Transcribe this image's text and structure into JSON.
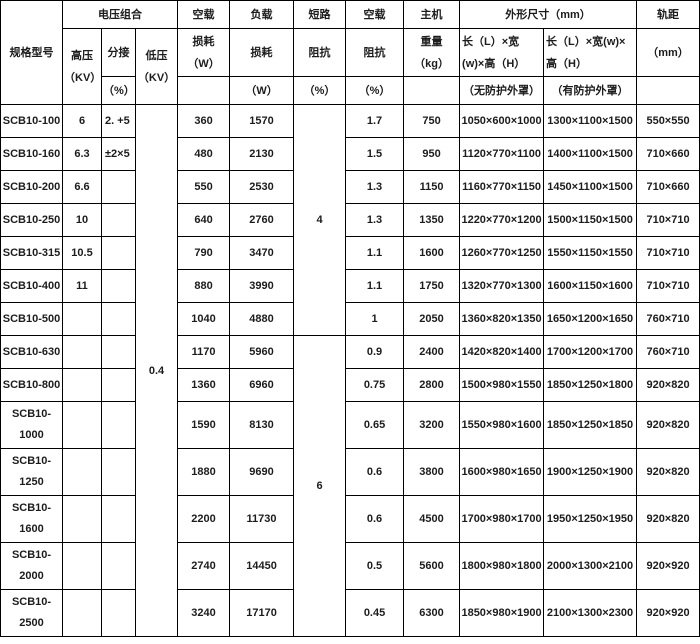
{
  "colors": {
    "border": "#000000",
    "text": "#1c1c1c",
    "background": "#ffffff"
  },
  "header": {
    "spec_model": "规格型号",
    "voltage_combo": "电压组合",
    "hv": "高压\n（KV）",
    "tap": "分接",
    "tap_unit": "（%）",
    "lv": "低压\n（KV）",
    "no_load": "空载",
    "no_load_loss": "损耗\n（W）",
    "load": "负载",
    "load_loss": "损耗",
    "load_loss_unit": "（W）",
    "short_circuit": "短路",
    "sc_impedance": "阻抗",
    "sc_impedance_unit": "（%）",
    "no_load2": "空载",
    "nl_impedance": "阻抗",
    "nl_impedance_unit": "（%）",
    "host": "主机",
    "weight": "重量\n（kg）",
    "dimensions": "外形尺寸（mm）",
    "dim_label_bare": "长（L）×宽(w)×高（H）",
    "dim_note_bare": "（无防护外罩）",
    "dim_label_enclosed": "长（L）×宽(w)×高（H）",
    "dim_note_enclosed": "（有防护外罩）",
    "gauge": "轨距",
    "gauge_unit": "（mm）"
  },
  "merged": {
    "lv_value": "0.4",
    "short_circuit_groups": [
      {
        "value": "4",
        "span": 7
      },
      {
        "value": "6",
        "span": 7
      }
    ]
  },
  "rows": [
    {
      "model": "SCB10-100",
      "hv": "6",
      "tap": "2. +5",
      "no_load_loss": "360",
      "load_loss": "1570",
      "no_load_imp": "1.7",
      "weight": "750",
      "dim_bare": "1050×600×1000",
      "dim_enclosed": "1300×1100×1500",
      "gauge": "550×550"
    },
    {
      "model": "SCB10-160",
      "hv": "6.3",
      "tap": "±2×5",
      "no_load_loss": "480",
      "load_loss": "2130",
      "no_load_imp": "1.5",
      "weight": "950",
      "dim_bare": "1120×770×1100",
      "dim_enclosed": "1400×1100×1500",
      "gauge": "710×660"
    },
    {
      "model": "SCB10-200",
      "hv": "6.6",
      "tap": "",
      "no_load_loss": "550",
      "load_loss": "2530",
      "no_load_imp": "1.3",
      "weight": "1150",
      "dim_bare": "1160×770×1150",
      "dim_enclosed": "1450×1100×1500",
      "gauge": "710×660"
    },
    {
      "model": "SCB10-250",
      "hv": "10",
      "tap": "",
      "no_load_loss": "640",
      "load_loss": "2760",
      "no_load_imp": "1.3",
      "weight": "1350",
      "dim_bare": "1220×770×1200",
      "dim_enclosed": "1500×1150×1500",
      "gauge": "710×710"
    },
    {
      "model": "SCB10-315",
      "hv": "10.5",
      "tap": "",
      "no_load_loss": "790",
      "load_loss": "3470",
      "no_load_imp": "1.1",
      "weight": "1600",
      "dim_bare": "1260×770×1250",
      "dim_enclosed": "1550×1150×1550",
      "gauge": "710×710"
    },
    {
      "model": "SCB10-400",
      "hv": "11",
      "tap": "",
      "no_load_loss": "880",
      "load_loss": "3990",
      "no_load_imp": "1.1",
      "weight": "1750",
      "dim_bare": "1320×770×1300",
      "dim_enclosed": "1600×1150×1600",
      "gauge": "710×710"
    },
    {
      "model": "SCB10-500",
      "hv": "",
      "tap": "",
      "no_load_loss": "1040",
      "load_loss": "4880",
      "no_load_imp": "1",
      "weight": "2050",
      "dim_bare": "1360×820×1350",
      "dim_enclosed": "1650×1200×1650",
      "gauge": "760×710"
    },
    {
      "model": "SCB10-630",
      "hv": "",
      "tap": "",
      "no_load_loss": "1170",
      "load_loss": "5960",
      "no_load_imp": "0.9",
      "weight": "2400",
      "dim_bare": "1420×820×1400",
      "dim_enclosed": "1700×1200×1700",
      "gauge": "760×710"
    },
    {
      "model": "SCB10-800",
      "hv": "",
      "tap": "",
      "no_load_loss": "1360",
      "load_loss": "6960",
      "no_load_imp": "0.75",
      "weight": "2800",
      "dim_bare": "1500×980×1550",
      "dim_enclosed": "1850×1250×1800",
      "gauge": "920×820"
    },
    {
      "model": "SCB10-\n1000",
      "hv": "",
      "tap": "",
      "no_load_loss": "1590",
      "load_loss": "8130",
      "no_load_imp": "0.65",
      "weight": "3200",
      "dim_bare": "1550×980×1600",
      "dim_enclosed": "1850×1250×1850",
      "gauge": "920×820"
    },
    {
      "model": "SCB10-\n1250",
      "hv": "",
      "tap": "",
      "no_load_loss": "1880",
      "load_loss": "9690",
      "no_load_imp": "0.6",
      "weight": "3800",
      "dim_bare": "1600×980×1650",
      "dim_enclosed": "1900×1250×1900",
      "gauge": "920×820"
    },
    {
      "model": "SCB10-\n1600",
      "hv": "",
      "tap": "",
      "no_load_loss": "2200",
      "load_loss": "11730",
      "no_load_imp": "0.6",
      "weight": "4500",
      "dim_bare": "1700×980×1700",
      "dim_enclosed": "1950×1250×1950",
      "gauge": "920×820"
    },
    {
      "model": "SCB10-\n2000",
      "hv": "",
      "tap": "",
      "no_load_loss": "2740",
      "load_loss": "14450",
      "no_load_imp": "0.5",
      "weight": "5600",
      "dim_bare": "1800×980×1800",
      "dim_enclosed": "2000×1300×2100",
      "gauge": "920×920"
    },
    {
      "model": "SCB10-\n2500",
      "hv": "",
      "tap": "",
      "no_load_loss": "3240",
      "load_loss": "17170",
      "no_load_imp": "0.45",
      "weight": "6300",
      "dim_bare": "1850×980×1900",
      "dim_enclosed": "2100×1300×2300",
      "gauge": "920×920"
    }
  ]
}
